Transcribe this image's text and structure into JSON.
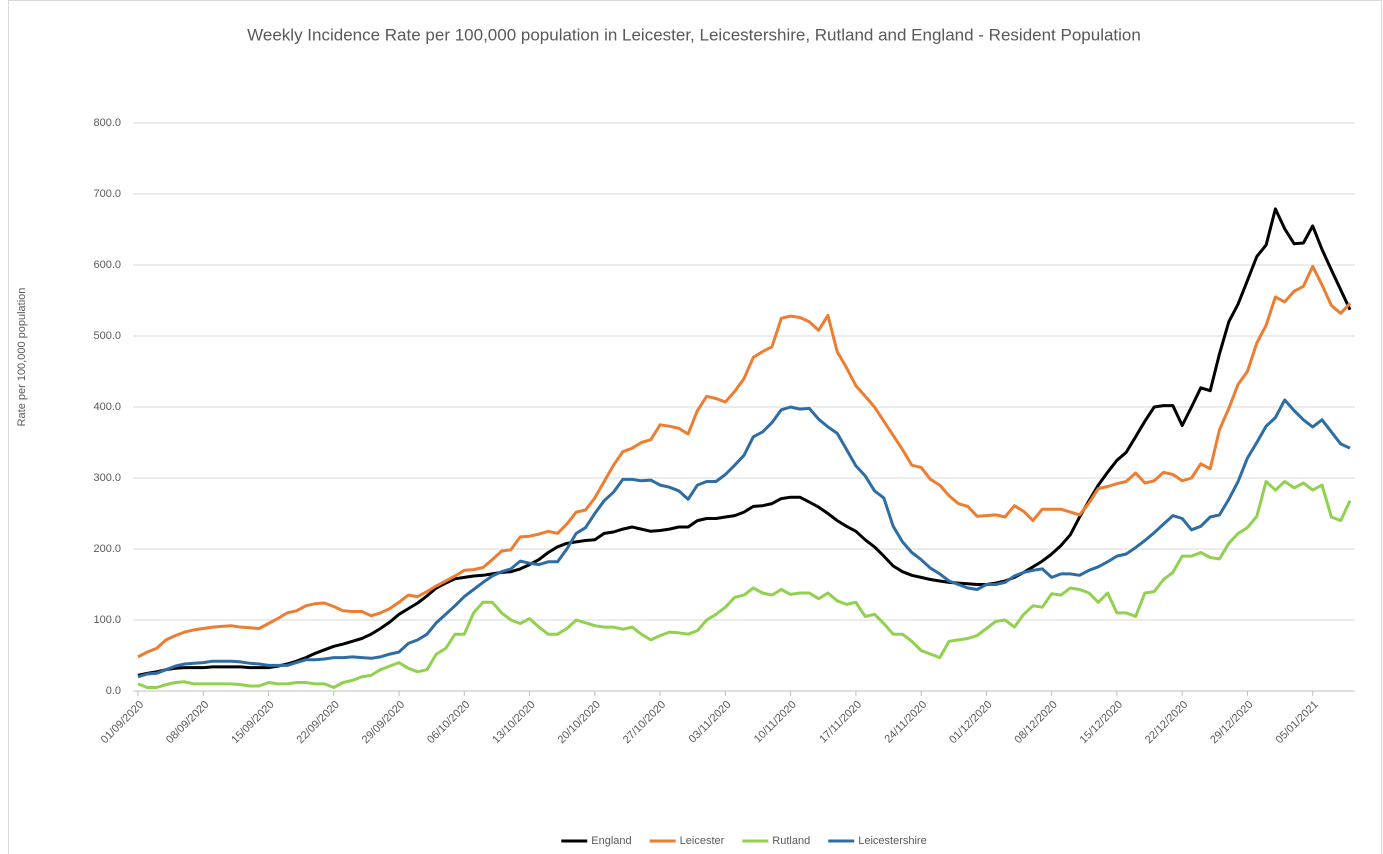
{
  "chart_data": {
    "type": "line",
    "title": "Weekly Incidence Rate per 100,000 population in Leicester, Leicestershire, Rutland and England - Resident Population",
    "y_label": "Rate per 100,000 population",
    "categories": [
      "01/09/2020",
      null,
      null,
      null,
      null,
      null,
      null,
      "08/09/2020",
      null,
      null,
      null,
      null,
      null,
      null,
      "15/09/2020",
      null,
      null,
      null,
      null,
      null,
      null,
      "22/09/2020",
      null,
      null,
      null,
      null,
      null,
      null,
      "29/09/2020",
      null,
      null,
      null,
      null,
      null,
      null,
      "06/10/2020",
      null,
      null,
      null,
      null,
      null,
      null,
      "13/10/2020",
      null,
      null,
      null,
      null,
      null,
      null,
      "20/10/2020",
      null,
      null,
      null,
      null,
      null,
      null,
      "27/10/2020",
      null,
      null,
      null,
      null,
      null,
      null,
      "03/11/2020",
      null,
      null,
      null,
      null,
      null,
      null,
      "10/11/2020",
      null,
      null,
      null,
      null,
      null,
      null,
      "17/11/2020",
      null,
      null,
      null,
      null,
      null,
      null,
      "24/11/2020",
      null,
      null,
      null,
      null,
      null,
      null,
      "01/12/2020",
      null,
      null,
      null,
      null,
      null,
      null,
      "08/12/2020",
      null,
      null,
      null,
      null,
      null,
      null,
      "15/12/2020",
      null,
      null,
      null,
      null,
      null,
      null,
      "22/12/2020",
      null,
      null,
      null,
      null,
      null,
      null,
      "29/12/2020",
      null,
      null,
      null,
      null,
      null,
      null,
      "05/01/2021",
      null,
      null,
      null,
      null
    ],
    "series": [
      {
        "name": "England",
        "color": "#000000",
        "values": [
          22,
          25,
          27,
          30,
          32,
          33,
          33,
          33,
          34,
          34,
          34,
          34,
          33,
          33,
          33,
          35,
          38,
          42,
          47,
          53,
          58,
          63,
          66,
          70,
          74,
          80,
          88,
          97,
          108,
          116,
          124,
          134,
          145,
          152,
          158,
          160,
          162,
          163,
          165,
          167,
          168,
          172,
          178,
          185,
          195,
          203,
          208,
          210,
          212,
          213,
          222,
          224,
          228,
          231,
          228,
          225,
          226,
          228,
          231,
          231,
          240,
          243,
          243,
          245,
          247,
          252,
          260,
          261,
          264,
          271,
          273,
          273,
          266,
          259,
          250,
          240,
          232,
          225,
          213,
          203,
          190,
          176,
          168,
          163,
          160,
          157,
          155,
          153,
          152,
          151,
          150,
          150,
          152,
          155,
          160,
          167,
          175,
          183,
          193,
          205,
          220,
          245,
          268,
          290,
          308,
          325,
          336,
          358,
          380,
          400,
          402,
          402,
          374,
          400,
          427,
          423,
          475,
          520,
          545,
          578,
          612,
          628,
          679,
          651,
          630,
          631,
          655,
          622,
          593,
          565,
          537
        ]
      },
      {
        "name": "Leicester",
        "color": "#ed7d31",
        "values": [
          48,
          55,
          60,
          72,
          78,
          83,
          86,
          88,
          90,
          91,
          92,
          90,
          89,
          88,
          95,
          102,
          110,
          113,
          120,
          123,
          124,
          119,
          113,
          112,
          112,
          106,
          110,
          116,
          125,
          135,
          133,
          140,
          148,
          155,
          162,
          170,
          171,
          174,
          185,
          197,
          199,
          217,
          218,
          221,
          225,
          222,
          235,
          252,
          255,
          272,
          295,
          318,
          337,
          342,
          350,
          354,
          375,
          373,
          370,
          362,
          395,
          415,
          412,
          407,
          422,
          440,
          470,
          478,
          485,
          525,
          528,
          526,
          520,
          508,
          529,
          478,
          455,
          430,
          415,
          400,
          380,
          360,
          340,
          318,
          315,
          298,
          290,
          275,
          264,
          260,
          246,
          247,
          248,
          245,
          261,
          253,
          240,
          256,
          256,
          256,
          252,
          248,
          265,
          285,
          288,
          292,
          295,
          307,
          293,
          296,
          308,
          305,
          296,
          300,
          320,
          313,
          368,
          398,
          432,
          450,
          490,
          515,
          555,
          548,
          563,
          570,
          598,
          572,
          543,
          532,
          546
        ]
      },
      {
        "name": "Rutland",
        "color": "#92d050",
        "values": [
          10,
          5,
          5,
          9,
          12,
          13,
          10,
          10,
          10,
          10,
          10,
          9,
          7,
          7,
          12,
          10,
          10,
          12,
          12,
          10,
          10,
          5,
          12,
          15,
          20,
          22,
          30,
          35,
          40,
          32,
          27,
          30,
          52,
          60,
          80,
          80,
          110,
          125,
          125,
          110,
          100,
          95,
          102,
          90,
          80,
          80,
          88,
          100,
          96,
          92,
          90,
          90,
          87,
          90,
          80,
          72,
          78,
          83,
          82,
          80,
          85,
          100,
          108,
          118,
          132,
          135,
          145,
          138,
          135,
          143,
          136,
          138,
          138,
          130,
          138,
          127,
          122,
          125,
          105,
          108,
          95,
          80,
          80,
          70,
          57,
          52,
          47,
          70,
          72,
          74,
          78,
          88,
          98,
          100,
          90,
          108,
          120,
          118,
          137,
          135,
          145,
          143,
          138,
          125,
          138,
          110,
          110,
          105,
          138,
          140,
          157,
          167,
          190,
          190,
          195,
          188,
          186,
          208,
          222,
          230,
          246,
          295,
          283,
          295,
          286,
          293,
          283,
          290,
          245,
          240,
          268
        ]
      },
      {
        "name": "Leicestershire",
        "color": "#2e6da4",
        "values": [
          20,
          24,
          25,
          30,
          35,
          38,
          39,
          40,
          42,
          42,
          42,
          41,
          39,
          38,
          36,
          36,
          36,
          40,
          44,
          44,
          45,
          47,
          47,
          48,
          47,
          46,
          48,
          52,
          55,
          67,
          72,
          80,
          96,
          108,
          120,
          133,
          143,
          153,
          162,
          168,
          172,
          183,
          180,
          178,
          182,
          182,
          200,
          222,
          230,
          250,
          268,
          280,
          298,
          298,
          296,
          297,
          290,
          287,
          282,
          270,
          290,
          295,
          295,
          305,
          318,
          332,
          358,
          365,
          378,
          396,
          400,
          397,
          398,
          383,
          372,
          363,
          340,
          317,
          303,
          282,
          272,
          232,
          210,
          195,
          185,
          173,
          165,
          155,
          150,
          145,
          143,
          150,
          150,
          153,
          162,
          167,
          170,
          172,
          160,
          165,
          165,
          163,
          170,
          175,
          182,
          190,
          193,
          202,
          212,
          223,
          235,
          247,
          243,
          227,
          232,
          245,
          248,
          270,
          295,
          328,
          350,
          373,
          385,
          410,
          395,
          382,
          372,
          382,
          365,
          348,
          342
        ]
      }
    ],
    "ylim": [
      0,
      800
    ],
    "yticks": [
      {
        "value": 0,
        "label": "0.0"
      },
      {
        "value": 100,
        "label": "100.0"
      },
      {
        "value": 200,
        "label": "200.0"
      },
      {
        "value": 300,
        "label": "300.0"
      },
      {
        "value": 400,
        "label": "400.0"
      },
      {
        "value": 500,
        "label": "500.0"
      },
      {
        "value": 600,
        "label": "600.0"
      },
      {
        "value": 700,
        "label": "700.0"
      },
      {
        "value": 800,
        "label": "800.0"
      }
    ],
    "grid": true,
    "legend": "bottom"
  }
}
